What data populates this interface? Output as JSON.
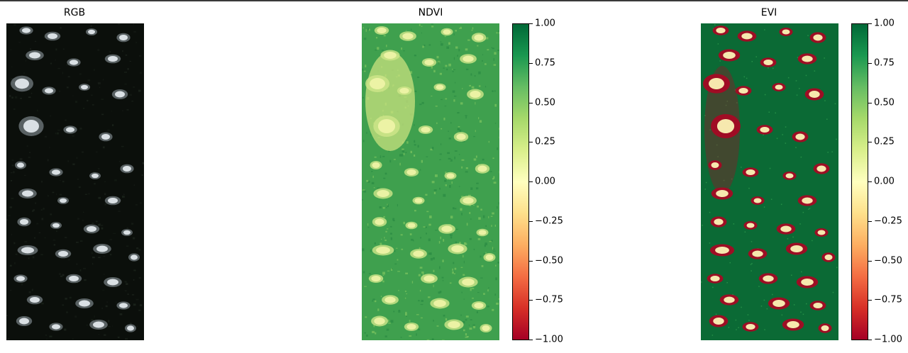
{
  "chart_data": [
    {
      "type": "heatmap",
      "title": "RGB",
      "axes": "off",
      "colormap": "true-color"
    },
    {
      "type": "heatmap",
      "title": "NDVI",
      "axes": "off",
      "colormap": "RdYlGn",
      "colorbar": {
        "min": -1.0,
        "max": 1.0,
        "ticks": [
          "1.00",
          "0.75",
          "0.50",
          "0.25",
          "0.00",
          "−0.25",
          "−0.50",
          "−0.75",
          "−1.00"
        ],
        "tick_values": [
          1.0,
          0.75,
          0.5,
          0.25,
          0.0,
          -0.25,
          -0.5,
          -0.75,
          -1.0
        ]
      }
    },
    {
      "type": "heatmap",
      "title": "EVI",
      "axes": "off",
      "colormap": "RdYlGn",
      "colorbar": {
        "min": -1.0,
        "max": 1.0,
        "ticks": [
          "1.00",
          "0.75",
          "0.50",
          "0.25",
          "0.00",
          "−0.25",
          "−0.50",
          "−0.75",
          "−1.00"
        ],
        "tick_values": [
          1.0,
          0.75,
          0.5,
          0.25,
          0.0,
          -0.25,
          -0.5,
          -0.75,
          -1.0
        ]
      }
    }
  ],
  "colors": {
    "rgb_background": "#0b0f0b",
    "rgb_cloud": "#e8eef2",
    "ndvi_base": "#3fa04e",
    "ndvi_light": "#eef3a6",
    "evi_base": "#0b6a35",
    "evi_red": "#a50a24",
    "evi_light": "#fbf4b6"
  }
}
